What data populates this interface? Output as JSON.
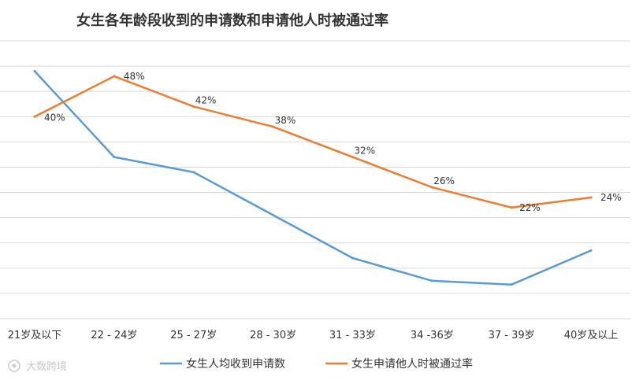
{
  "chart_data": {
    "type": "line",
    "title": "女生各年龄段收到的申请数和申请他人时被通过率",
    "categories": [
      "21岁及以下",
      "22 - 24岁",
      "25 - 27岁",
      "28 - 30岁",
      "31 - 33岁",
      "34 -36岁",
      "37 - 39岁",
      "40岁及以上"
    ],
    "series": [
      {
        "name": "女生人均收到申请数",
        "color": "#5b9bd5",
        "axis": "primary",
        "values": [
          9.8,
          6.4,
          5.8,
          4.1,
          2.4,
          1.5,
          1.35,
          2.7
        ],
        "data_labels": []
      },
      {
        "name": "女生申请他人时被通过率",
        "color": "#ed7d31",
        "axis": "secondary",
        "values": [
          40,
          48,
          42,
          38,
          32,
          26,
          22,
          24
        ],
        "data_labels": [
          "40%",
          "48%",
          "42%",
          "38%",
          "32%",
          "26%",
          "22%",
          "24%"
        ]
      }
    ],
    "primary_axis": {
      "ylim": [
        0,
        11
      ],
      "visible_labels": false
    },
    "secondary_axis": {
      "ylim": [
        0,
        0.55
      ],
      "visible_labels": false
    },
    "grid": true,
    "legend_position": "bottom"
  },
  "watermark": {
    "text": "大数跨境"
  }
}
